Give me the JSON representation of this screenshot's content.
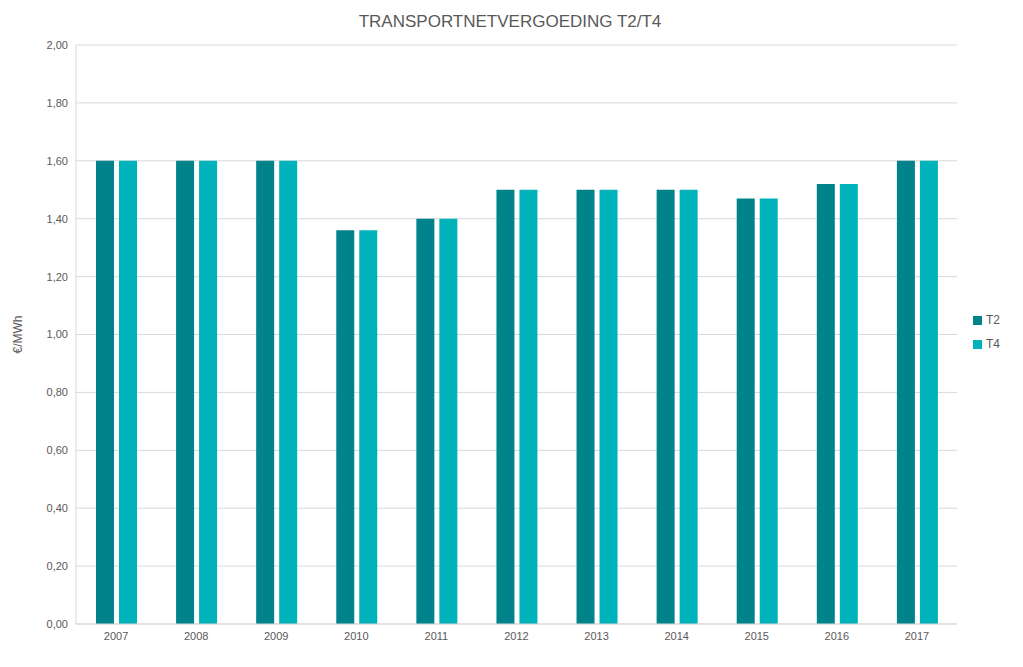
{
  "chart_data": {
    "type": "bar",
    "title": "TRANSPORTNETVERGOEDING T2/T4",
    "y_label": "€/MWh",
    "categories": [
      "2007",
      "2008",
      "2009",
      "2010",
      "2011",
      "2012",
      "2013",
      "2014",
      "2015",
      "2016",
      "2017"
    ],
    "series": [
      {
        "name": "T2",
        "color": "#00838a",
        "values": [
          1.6,
          1.6,
          1.6,
          1.36,
          1.4,
          1.5,
          1.5,
          1.5,
          1.47,
          1.52,
          1.6
        ]
      },
      {
        "name": "T4",
        "color": "#00b2b9",
        "values": [
          1.6,
          1.6,
          1.6,
          1.36,
          1.4,
          1.5,
          1.5,
          1.5,
          1.47,
          1.52,
          1.6
        ]
      }
    ],
    "ylim": [
      0,
      2
    ],
    "yticks": [
      {
        "value": 0,
        "label": "0,00"
      },
      {
        "value": 0.2,
        "label": "0,20"
      },
      {
        "value": 0.4,
        "label": "0,40"
      },
      {
        "value": 0.6,
        "label": "0,60"
      },
      {
        "value": 0.8,
        "label": "0,80"
      },
      {
        "value": 1,
        "label": "1,00"
      },
      {
        "value": 1.2,
        "label": "1,20"
      },
      {
        "value": 1.4,
        "label": "1,40"
      },
      {
        "value": 1.6,
        "label": "1,60"
      },
      {
        "value": 1.8,
        "label": "1,80"
      },
      {
        "value": 2,
        "label": "2,00"
      }
    ],
    "grid": true,
    "legend": "right"
  }
}
